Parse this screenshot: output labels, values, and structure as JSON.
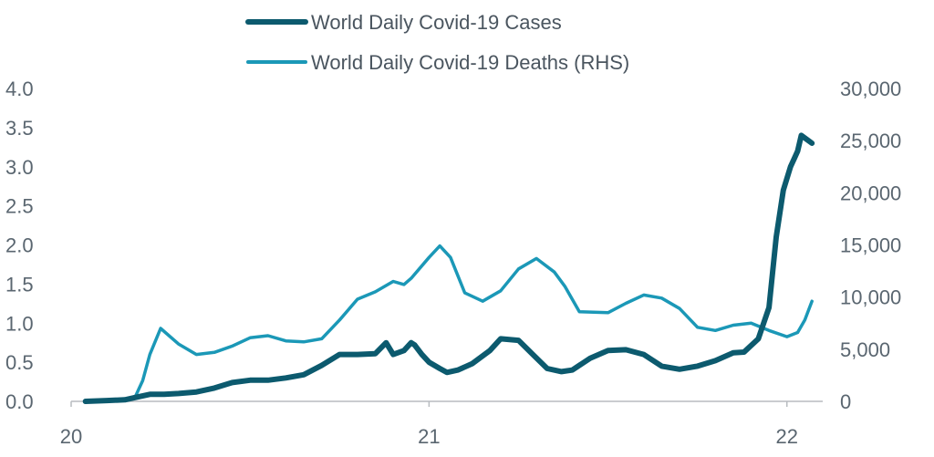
{
  "chart_data": {
    "type": "line",
    "title": "",
    "xlabel": "",
    "ylabel": "",
    "legend_position": "top-center",
    "grid": false,
    "x_ticks": [
      "20",
      "21",
      "22"
    ],
    "x_range": [
      2020.0,
      2022.1
    ],
    "y_left_ticks": [
      "0.0",
      "0.5",
      "1.0",
      "1.5",
      "2.0",
      "2.5",
      "3.0",
      "3.5",
      "4.0"
    ],
    "y_left_range": [
      0,
      4.0
    ],
    "y_right_ticks": [
      "0",
      "5,000",
      "10,000",
      "15,000",
      "20,000",
      "25,000",
      "30,000"
    ],
    "y_right_range": [
      0,
      30000
    ],
    "series": [
      {
        "name": "World Daily Covid-19 Cases",
        "axis": "left",
        "color": "#0c5a6e",
        "x": [
          2020.04,
          2020.1,
          2020.15,
          2020.18,
          2020.22,
          2020.26,
          2020.3,
          2020.35,
          2020.4,
          2020.45,
          2020.5,
          2020.55,
          2020.6,
          2020.65,
          2020.7,
          2020.75,
          2020.8,
          2020.85,
          2020.88,
          2020.9,
          2020.93,
          2020.95,
          2020.96,
          2020.98,
          2021.0,
          2021.03,
          2021.05,
          2021.08,
          2021.12,
          2021.17,
          2021.2,
          2021.25,
          2021.29,
          2021.33,
          2021.37,
          2021.4,
          2021.45,
          2021.5,
          2021.55,
          2021.6,
          2021.65,
          2021.7,
          2021.75,
          2021.8,
          2021.85,
          2021.88,
          2021.92,
          2021.95,
          2021.97,
          2021.99,
          2022.01,
          2022.02,
          2022.03,
          2022.04,
          2022.055,
          2022.07
        ],
        "values": [
          0.0,
          0.01,
          0.02,
          0.05,
          0.09,
          0.09,
          0.1,
          0.12,
          0.17,
          0.24,
          0.27,
          0.27,
          0.3,
          0.34,
          0.46,
          0.6,
          0.6,
          0.61,
          0.75,
          0.6,
          0.65,
          0.75,
          0.72,
          0.6,
          0.5,
          0.42,
          0.37,
          0.4,
          0.48,
          0.65,
          0.8,
          0.78,
          0.6,
          0.42,
          0.38,
          0.4,
          0.55,
          0.65,
          0.66,
          0.6,
          0.45,
          0.41,
          0.45,
          0.52,
          0.62,
          0.63,
          0.8,
          1.2,
          2.1,
          2.7,
          3.0,
          3.1,
          3.2,
          3.4,
          3.35,
          3.3
        ]
      },
      {
        "name": "World Daily Covid-19 Deaths (RHS)",
        "axis": "right",
        "color": "#1b98b7",
        "x": [
          2020.04,
          2020.15,
          2020.18,
          2020.2,
          2020.22,
          2020.25,
          2020.3,
          2020.35,
          2020.4,
          2020.45,
          2020.5,
          2020.55,
          2020.6,
          2020.65,
          2020.7,
          2020.75,
          2020.8,
          2020.85,
          2020.9,
          2020.93,
          2020.95,
          2021.0,
          2021.03,
          2021.06,
          2021.1,
          2021.15,
          2021.2,
          2021.25,
          2021.3,
          2021.35,
          2021.38,
          2021.42,
          2021.5,
          2021.55,
          2021.6,
          2021.65,
          2021.7,
          2021.75,
          2021.8,
          2021.85,
          2021.9,
          2021.95,
          2022.0,
          2022.03,
          2022.05,
          2022.07
        ],
        "values": [
          0,
          100,
          500,
          2000,
          4500,
          7000,
          5500,
          4500,
          4700,
          5300,
          6100,
          6300,
          5800,
          5700,
          6000,
          7800,
          9800,
          10500,
          11500,
          11200,
          11800,
          13800,
          14900,
          13800,
          10400,
          9600,
          10600,
          12700,
          13700,
          12400,
          11000,
          8600,
          8500,
          9400,
          10200,
          9900,
          8900,
          7100,
          6800,
          7300,
          7500,
          6800,
          6200,
          6600,
          7800,
          9600
        ]
      }
    ]
  }
}
